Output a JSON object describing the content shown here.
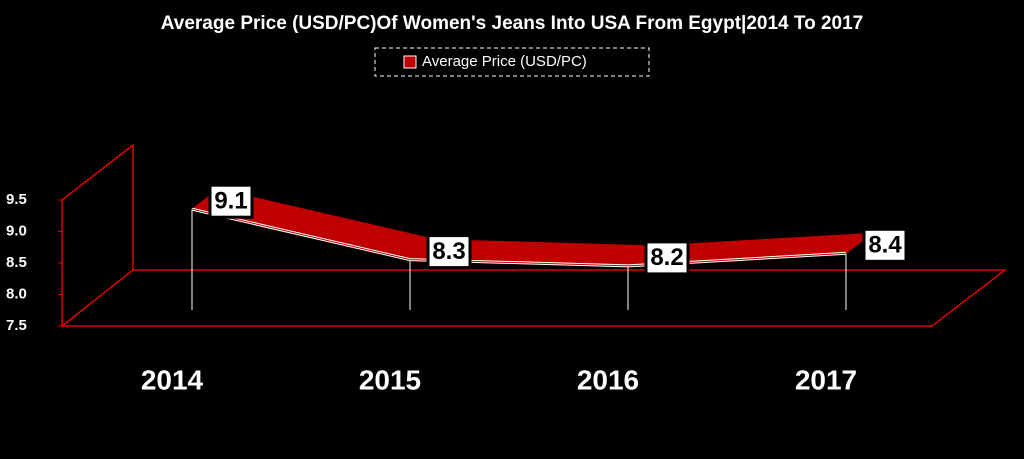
{
  "chart_data": {
    "type": "line3d",
    "title": "Average Price (USD/PC)Of Women's Jeans Into USA From Egypt|2014 To 2017",
    "categories": [
      "2014",
      "2015",
      "2016",
      "2017"
    ],
    "series": [
      {
        "name": "Average Price (USD/PC)",
        "color": "#c00000",
        "values": [
          9.1,
          8.3,
          8.2,
          8.4
        ]
      }
    ],
    "ylim": [
      7.5,
      9.5
    ],
    "yticks": [
      7.5,
      {
        "value": 8,
        "label": "8.0"
      },
      8.5,
      {
        "value": 9,
        "label": "9.0"
      },
      9.5
    ],
    "legend": "top"
  }
}
